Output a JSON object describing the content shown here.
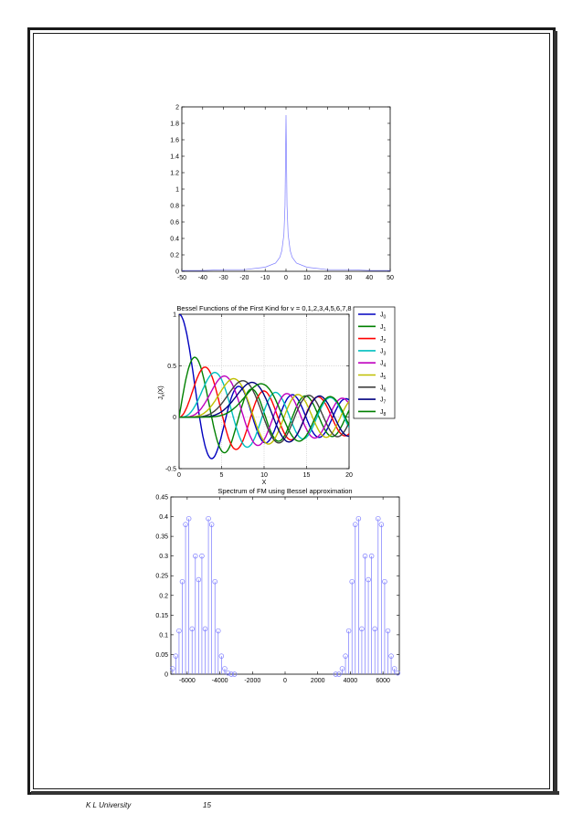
{
  "footer": {
    "university": "K L University",
    "page_number": "15"
  },
  "chart_data": [
    {
      "type": "line",
      "title": "",
      "xlabel": "",
      "ylabel": "",
      "xlim": [
        -50,
        50
      ],
      "ylim": [
        0,
        2
      ],
      "xticks": [
        "-50",
        "-40",
        "-30",
        "-20",
        "-10",
        "0",
        "10",
        "20",
        "30",
        "40",
        "50"
      ],
      "yticks": [
        "0",
        "0.2",
        "0.4",
        "0.6",
        "0.8",
        "1",
        "1.2",
        "1.4",
        "1.6",
        "1.8",
        "2"
      ],
      "grid": false,
      "color": "#7b7bff",
      "x": [
        -50,
        -40,
        -30,
        -20,
        -10,
        -5,
        -3,
        -2,
        -1,
        -0.5,
        -0.2,
        0,
        0.2,
        0.5,
        1,
        2,
        3,
        5,
        10,
        20,
        30,
        40,
        50
      ],
      "y": [
        0.01,
        0.01,
        0.02,
        0.02,
        0.05,
        0.1,
        0.17,
        0.25,
        0.45,
        0.8,
        1.4,
        1.9,
        1.4,
        0.8,
        0.45,
        0.25,
        0.17,
        0.1,
        0.05,
        0.02,
        0.02,
        0.01,
        0.01
      ]
    },
    {
      "type": "line",
      "title": "Bessel Functions of the First Kind for v = 0,1,2,3,4,5,6,7,8",
      "xlabel": "X",
      "ylabel": "J_v(X)",
      "xlim": [
        0,
        20
      ],
      "ylim": [
        -0.5,
        1
      ],
      "xticks": [
        "0",
        "5",
        "10",
        "15",
        "20"
      ],
      "yticks": [
        "-0.5",
        "0",
        "0.5",
        "1"
      ],
      "grid": true,
      "legend_position": "right",
      "series": [
        {
          "name": "J",
          "sub": "0",
          "order": 0,
          "color": "#0000bf"
        },
        {
          "name": "J",
          "sub": "1",
          "order": 1,
          "color": "#008000"
        },
        {
          "name": "J",
          "sub": "2",
          "order": 2,
          "color": "#ff0000"
        },
        {
          "name": "J",
          "sub": "3",
          "order": 3,
          "color": "#00bfbf"
        },
        {
          "name": "J",
          "sub": "4",
          "order": 4,
          "color": "#bf00bf"
        },
        {
          "name": "J",
          "sub": "5",
          "order": 5,
          "color": "#bfbf00"
        },
        {
          "name": "J",
          "sub": "6",
          "order": 6,
          "color": "#404040"
        },
        {
          "name": "J",
          "sub": "7",
          "order": 7,
          "color": "#00007f"
        },
        {
          "name": "J",
          "sub": "8",
          "order": 8,
          "color": "#007f00"
        }
      ]
    },
    {
      "type": "stem",
      "title": "Spectrum of FM using Bessel approximation",
      "xlabel": "",
      "ylabel": "",
      "xlim": [
        -7000,
        7000
      ],
      "ylim": [
        0,
        0.45
      ],
      "xticks": [
        "-6000",
        "-4000",
        "-2000",
        "0",
        "2000",
        "4000",
        "6000"
      ],
      "yticks": [
        "0",
        "0.05",
        "0.1",
        "0.15",
        "0.2",
        "0.25",
        "0.3",
        "0.35",
        "0.4",
        "0.45"
      ],
      "grid": false,
      "color": "#7b7bff",
      "x": [
        -6900,
        -6700,
        -6500,
        -6300,
        -6100,
        -5900,
        -5700,
        -5500,
        -5300,
        -5100,
        -4900,
        -4700,
        -4500,
        -4300,
        -4100,
        -3900,
        -3700,
        -3500,
        -3300,
        -3100,
        3100,
        3300,
        3500,
        3700,
        3900,
        4100,
        4300,
        4500,
        4700,
        4900,
        5100,
        5300,
        5500,
        5700,
        5900,
        6100,
        6300,
        6500,
        6700,
        6900
      ],
      "y": [
        0.014,
        0.046,
        0.11,
        0.235,
        0.38,
        0.395,
        0.115,
        0.3,
        0.24,
        0.3,
        0.115,
        0.395,
        0.38,
        0.235,
        0.11,
        0.046,
        0.014,
        0.003,
        0.0,
        0.0,
        0.0,
        0.0,
        0.014,
        0.046,
        0.11,
        0.235,
        0.38,
        0.395,
        0.115,
        0.3,
        0.24,
        0.3,
        0.115,
        0.395,
        0.38,
        0.235,
        0.11,
        0.046,
        0.014,
        0.003
      ]
    }
  ]
}
